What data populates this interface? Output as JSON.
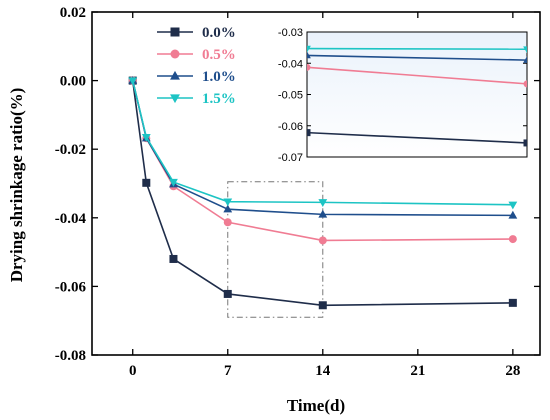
{
  "chart_data": {
    "type": "line",
    "xlabel": "Time(d)",
    "ylabel": "Drying shrinkage ratio(%)",
    "xlim": [
      -3,
      30
    ],
    "ylim": [
      -0.08,
      0.02
    ],
    "xticks": [
      "0",
      "7",
      "14",
      "21",
      "28"
    ],
    "yticks": [
      "-0.08",
      "-0.06",
      "-0.04",
      "-0.02",
      "0.00",
      "0.02"
    ],
    "x": [
      0,
      1,
      3,
      7,
      14,
      28
    ],
    "legend_position": "top-left",
    "series": [
      {
        "name": "0.0%",
        "color": "#1f2d4a",
        "marker": "square",
        "values": [
          0.0,
          -0.0298,
          -0.052,
          -0.0622,
          -0.0655,
          -0.0648
        ]
      },
      {
        "name": "0.5%",
        "color": "#f07c93",
        "marker": "circle",
        "values": [
          0.0,
          -0.0168,
          -0.0308,
          -0.0413,
          -0.0466,
          -0.0462
        ]
      },
      {
        "name": "1.0%",
        "color": "#1f4e8c",
        "marker": "triangle-up",
        "values": [
          0.0,
          -0.0168,
          -0.0302,
          -0.0375,
          -0.039,
          -0.0393
        ]
      },
      {
        "name": "1.5%",
        "color": "#1dc4c4",
        "marker": "triangle-down",
        "values": [
          0.0,
          -0.0165,
          -0.0296,
          -0.0353,
          -0.0355,
          -0.0362
        ]
      }
    ],
    "zoom_box": {
      "x_range": [
        7,
        14
      ],
      "y_range": [
        -0.069,
        -0.0295
      ]
    },
    "inset": {
      "x_range": [
        7,
        14
      ],
      "ylim": [
        -0.07,
        -0.03
      ],
      "yticks": [
        "-0.03",
        "-0.04",
        "-0.05",
        "-0.06",
        "-0.07"
      ]
    }
  }
}
